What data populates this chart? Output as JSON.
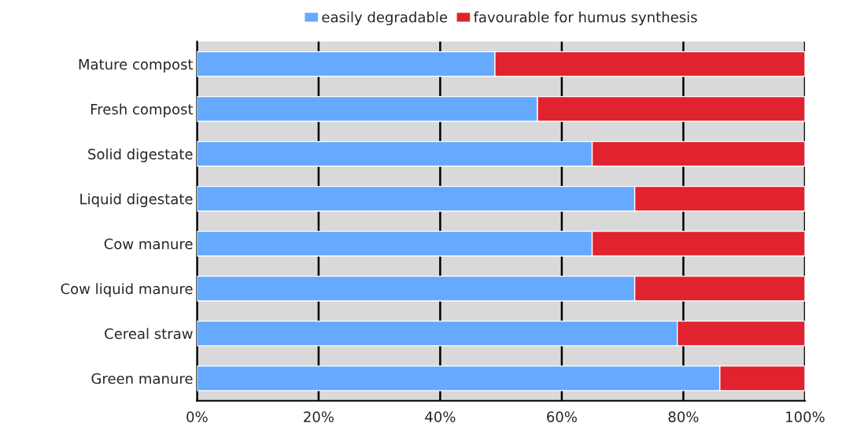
{
  "chart_data": {
    "type": "bar",
    "orientation": "horizontal",
    "stacked": true,
    "categories": [
      "Mature compost",
      "Fresh compost",
      "Solid digestate",
      "Liquid digestate",
      "Cow manure",
      "Cow liquid manure",
      "Cereal straw",
      "Green manure"
    ],
    "series": [
      {
        "name": "easily degradable",
        "color": "#66aaff",
        "values": [
          49,
          56,
          65,
          72,
          65,
          72,
          79,
          86
        ]
      },
      {
        "name": "favourable for humus synthesis",
        "color": "#e0232f",
        "values": [
          51,
          44,
          35,
          28,
          35,
          28,
          21,
          14
        ]
      }
    ],
    "xlim": [
      0,
      100
    ],
    "xticks": [
      {
        "value": 0,
        "label": "0%"
      },
      {
        "value": 20,
        "label": "20%"
      },
      {
        "value": 40,
        "label": "40%"
      },
      {
        "value": 60,
        "label": "60%"
      },
      {
        "value": 80,
        "label": "80%"
      },
      {
        "value": 100,
        "label": "100%"
      }
    ],
    "grid": "x",
    "legend": "top"
  }
}
